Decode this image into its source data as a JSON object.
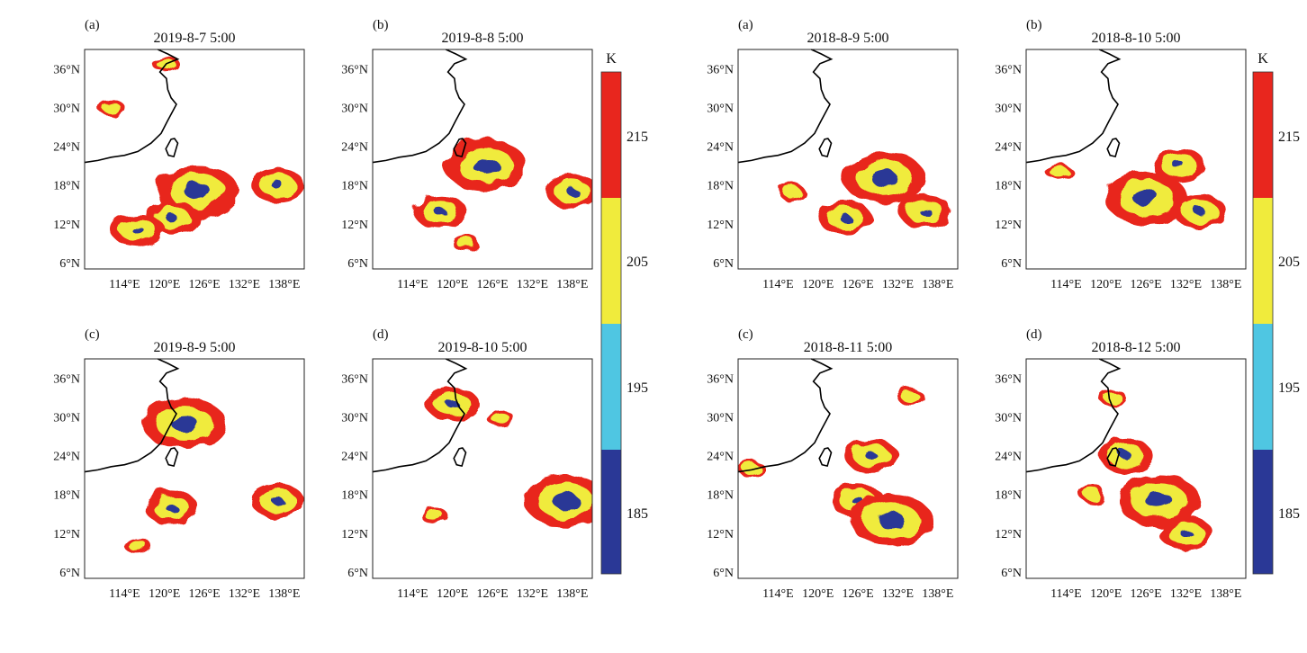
{
  "colorbar": {
    "unit": "K",
    "ticks": [
      "215",
      "205",
      "195",
      "185"
    ],
    "colors": [
      "#e8261e",
      "#f0eb3c",
      "#4fc6e2",
      "#2a3896"
    ]
  },
  "axes": {
    "lat_ticks": [
      "36°N",
      "30°N",
      "24°N",
      "18°N",
      "12°N",
      "6°N"
    ],
    "lon_ticks": [
      "114°E",
      "120°E",
      "126°E",
      "132°E",
      "138°E"
    ]
  },
  "panels": [
    {
      "label": "(a)",
      "title": "2019-8-7 5:00"
    },
    {
      "label": "(b)",
      "title": "2019-8-8 5:00"
    },
    {
      "label": "(c)",
      "title": "2019-8-9 5:00"
    },
    {
      "label": "(d)",
      "title": "2019-8-10 5:00"
    },
    {
      "label": "(a)",
      "title": "2018-8-9 5:00"
    },
    {
      "label": "(b)",
      "title": "2018-8-10 5:00"
    },
    {
      "label": "(c)",
      "title": "2018-8-11 5:00"
    },
    {
      "label": "(d)",
      "title": "2018-8-12 5:00"
    }
  ],
  "blobs": [
    [
      {
        "lon": 125,
        "lat": 17,
        "r": 3
      },
      {
        "lon": 121,
        "lat": 13,
        "r": 2
      },
      {
        "lon": 116,
        "lat": 11,
        "r": 2
      },
      {
        "lon": 137,
        "lat": 18,
        "r": 2
      },
      {
        "lon": 120,
        "lat": 37,
        "r": 1
      },
      {
        "lon": 112,
        "lat": 30,
        "r": 1
      }
    ],
    [
      {
        "lon": 125,
        "lat": 21,
        "r": 3
      },
      {
        "lon": 118,
        "lat": 14,
        "r": 2
      },
      {
        "lon": 138,
        "lat": 17,
        "r": 2
      },
      {
        "lon": 122,
        "lat": 9,
        "r": 1
      }
    ],
    [
      {
        "lon": 123,
        "lat": 29,
        "r": 3
      },
      {
        "lon": 121,
        "lat": 16,
        "r": 2
      },
      {
        "lon": 137,
        "lat": 17,
        "r": 2
      },
      {
        "lon": 116,
        "lat": 10,
        "r": 1
      }
    ],
    [
      {
        "lon": 120,
        "lat": 32,
        "r": 2
      },
      {
        "lon": 127,
        "lat": 30,
        "r": 1
      },
      {
        "lon": 137,
        "lat": 17,
        "r": 3
      },
      {
        "lon": 117,
        "lat": 15,
        "r": 1
      }
    ],
    [
      {
        "lon": 130,
        "lat": 19,
        "r": 3
      },
      {
        "lon": 124,
        "lat": 13,
        "r": 2
      },
      {
        "lon": 136,
        "lat": 14,
        "r": 2
      },
      {
        "lon": 116,
        "lat": 17,
        "r": 1
      }
    ],
    [
      {
        "lon": 126,
        "lat": 16,
        "r": 3
      },
      {
        "lon": 131,
        "lat": 21,
        "r": 2
      },
      {
        "lon": 134,
        "lat": 14,
        "r": 2
      },
      {
        "lon": 113,
        "lat": 20,
        "r": 1
      }
    ],
    [
      {
        "lon": 126,
        "lat": 17,
        "r": 2
      },
      {
        "lon": 131,
        "lat": 14,
        "r": 3
      },
      {
        "lon": 128,
        "lat": 24,
        "r": 2
      },
      {
        "lon": 110,
        "lat": 22,
        "r": 1
      },
      {
        "lon": 134,
        "lat": 33,
        "r": 1
      }
    ],
    [
      {
        "lon": 123,
        "lat": 24,
        "r": 2
      },
      {
        "lon": 128,
        "lat": 17,
        "r": 3
      },
      {
        "lon": 132,
        "lat": 12,
        "r": 2
      },
      {
        "lon": 118,
        "lat": 18,
        "r": 1
      },
      {
        "lon": 121,
        "lat": 33,
        "r": 1
      }
    ]
  ]
}
